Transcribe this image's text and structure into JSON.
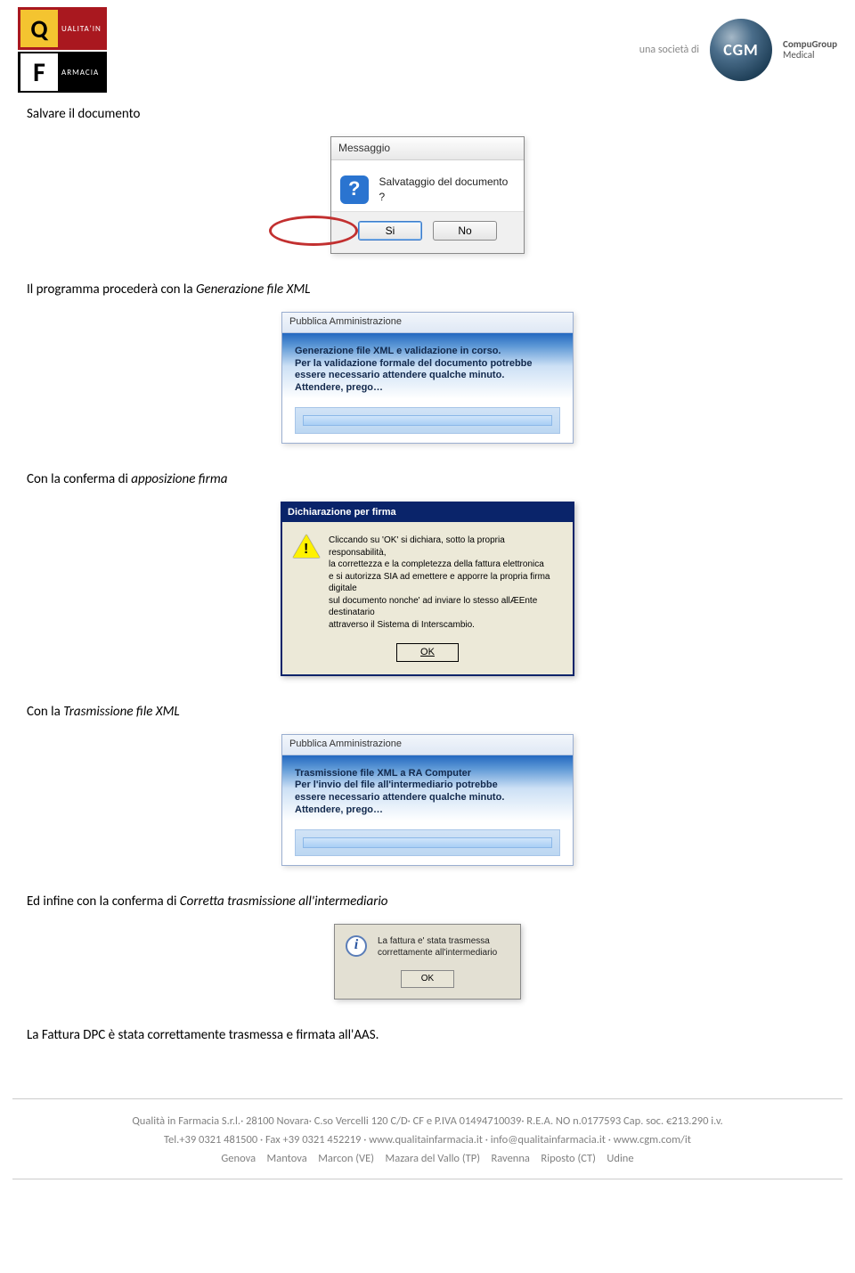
{
  "header": {
    "logo_left_q": "Q",
    "logo_left_q_label": "UALITA'IN",
    "logo_left_f": "F",
    "logo_left_f_label": "ARMACIA",
    "societa": "una società di",
    "cgm": "CGM",
    "cgm_name_line1": "CompuGroup",
    "cgm_name_line2": "Medical"
  },
  "body": {
    "s1_heading": "Salvare il documento",
    "s2_text_a": "Il programma procederà con la ",
    "s2_text_b": "Generazione file XML",
    "s3_text_a": "Con la conferma di ",
    "s3_text_b": "apposizione firma",
    "s4_text_a": "Con la ",
    "s4_text_b": "Trasmissione file XML",
    "s5_text_a": "Ed infine con la conferma di ",
    "s5_text_b": "Corretta trasmissione all'intermediario",
    "s6_text": "La Fattura DPC è stata correttamente trasmessa e firmata all'AAS."
  },
  "dialog1": {
    "title": "Messaggio",
    "question": "Salvataggio del documento ?",
    "si": "Si",
    "no": "No"
  },
  "dialog2": {
    "title": "Pubblica Amministrazione",
    "l1": "Generazione file XML e validazione in corso.",
    "l2": "Per la validazione formale del documento potrebbe",
    "l3": "essere necessario attendere qualche minuto.",
    "l4": "Attendere, prego…"
  },
  "dialog3": {
    "title": "Dichiarazione per firma",
    "l1": "Cliccando su 'OK' si dichiara, sotto la propria responsabilità,",
    "l2": "la correttezza e la completezza della fattura elettronica",
    "l3": "e si autorizza SIA ad emettere e apporre la propria firma digitale",
    "l4": "sul documento nonche' ad inviare lo stesso allÆEnte destinatario",
    "l5": "attraverso il Sistema di Interscambio.",
    "ok": "OK"
  },
  "dialog4": {
    "title": "Pubblica Amministrazione",
    "l1": "Trasmissione file XML a RA Computer",
    "l2": "Per l'invio del file all'intermediario potrebbe",
    "l3": "essere necessario attendere qualche minuto.",
    "l4": "Attendere, prego…"
  },
  "dialog5": {
    "l1": "La fattura e' stata trasmessa",
    "l2": "correttamente all'intermediario",
    "ok": "OK"
  },
  "footer": {
    "l1": "Qualità in Farmacia S.r.l.· 28100 Novara· C.so Vercelli 120 C/D· CF e P.IVA 01494710039· R.E.A. NO n.0177593 Cap. soc. €213.290 i.v.",
    "l2": "Tel.+39 0321 481500 · Fax +39 0321 452219 · www.qualitainfarmacia.it · info@qualitainfarmacia.it · www.cgm.com/it",
    "l3": "Genova Mantova Marcon (VE) Mazara del Vallo (TP) Ravenna Riposto (CT) Udine"
  },
  "colors": {
    "logo_q_bg": "#a9181f",
    "logo_q_box": "#f4c430",
    "logo_f_bg": "#000000",
    "cgm_sphere_dark": "#1a3a52",
    "footer_text": "#808080",
    "xp_titlebar": "#0a246a",
    "xp_face": "#ece9d8",
    "highlight_red": "#c23030"
  }
}
